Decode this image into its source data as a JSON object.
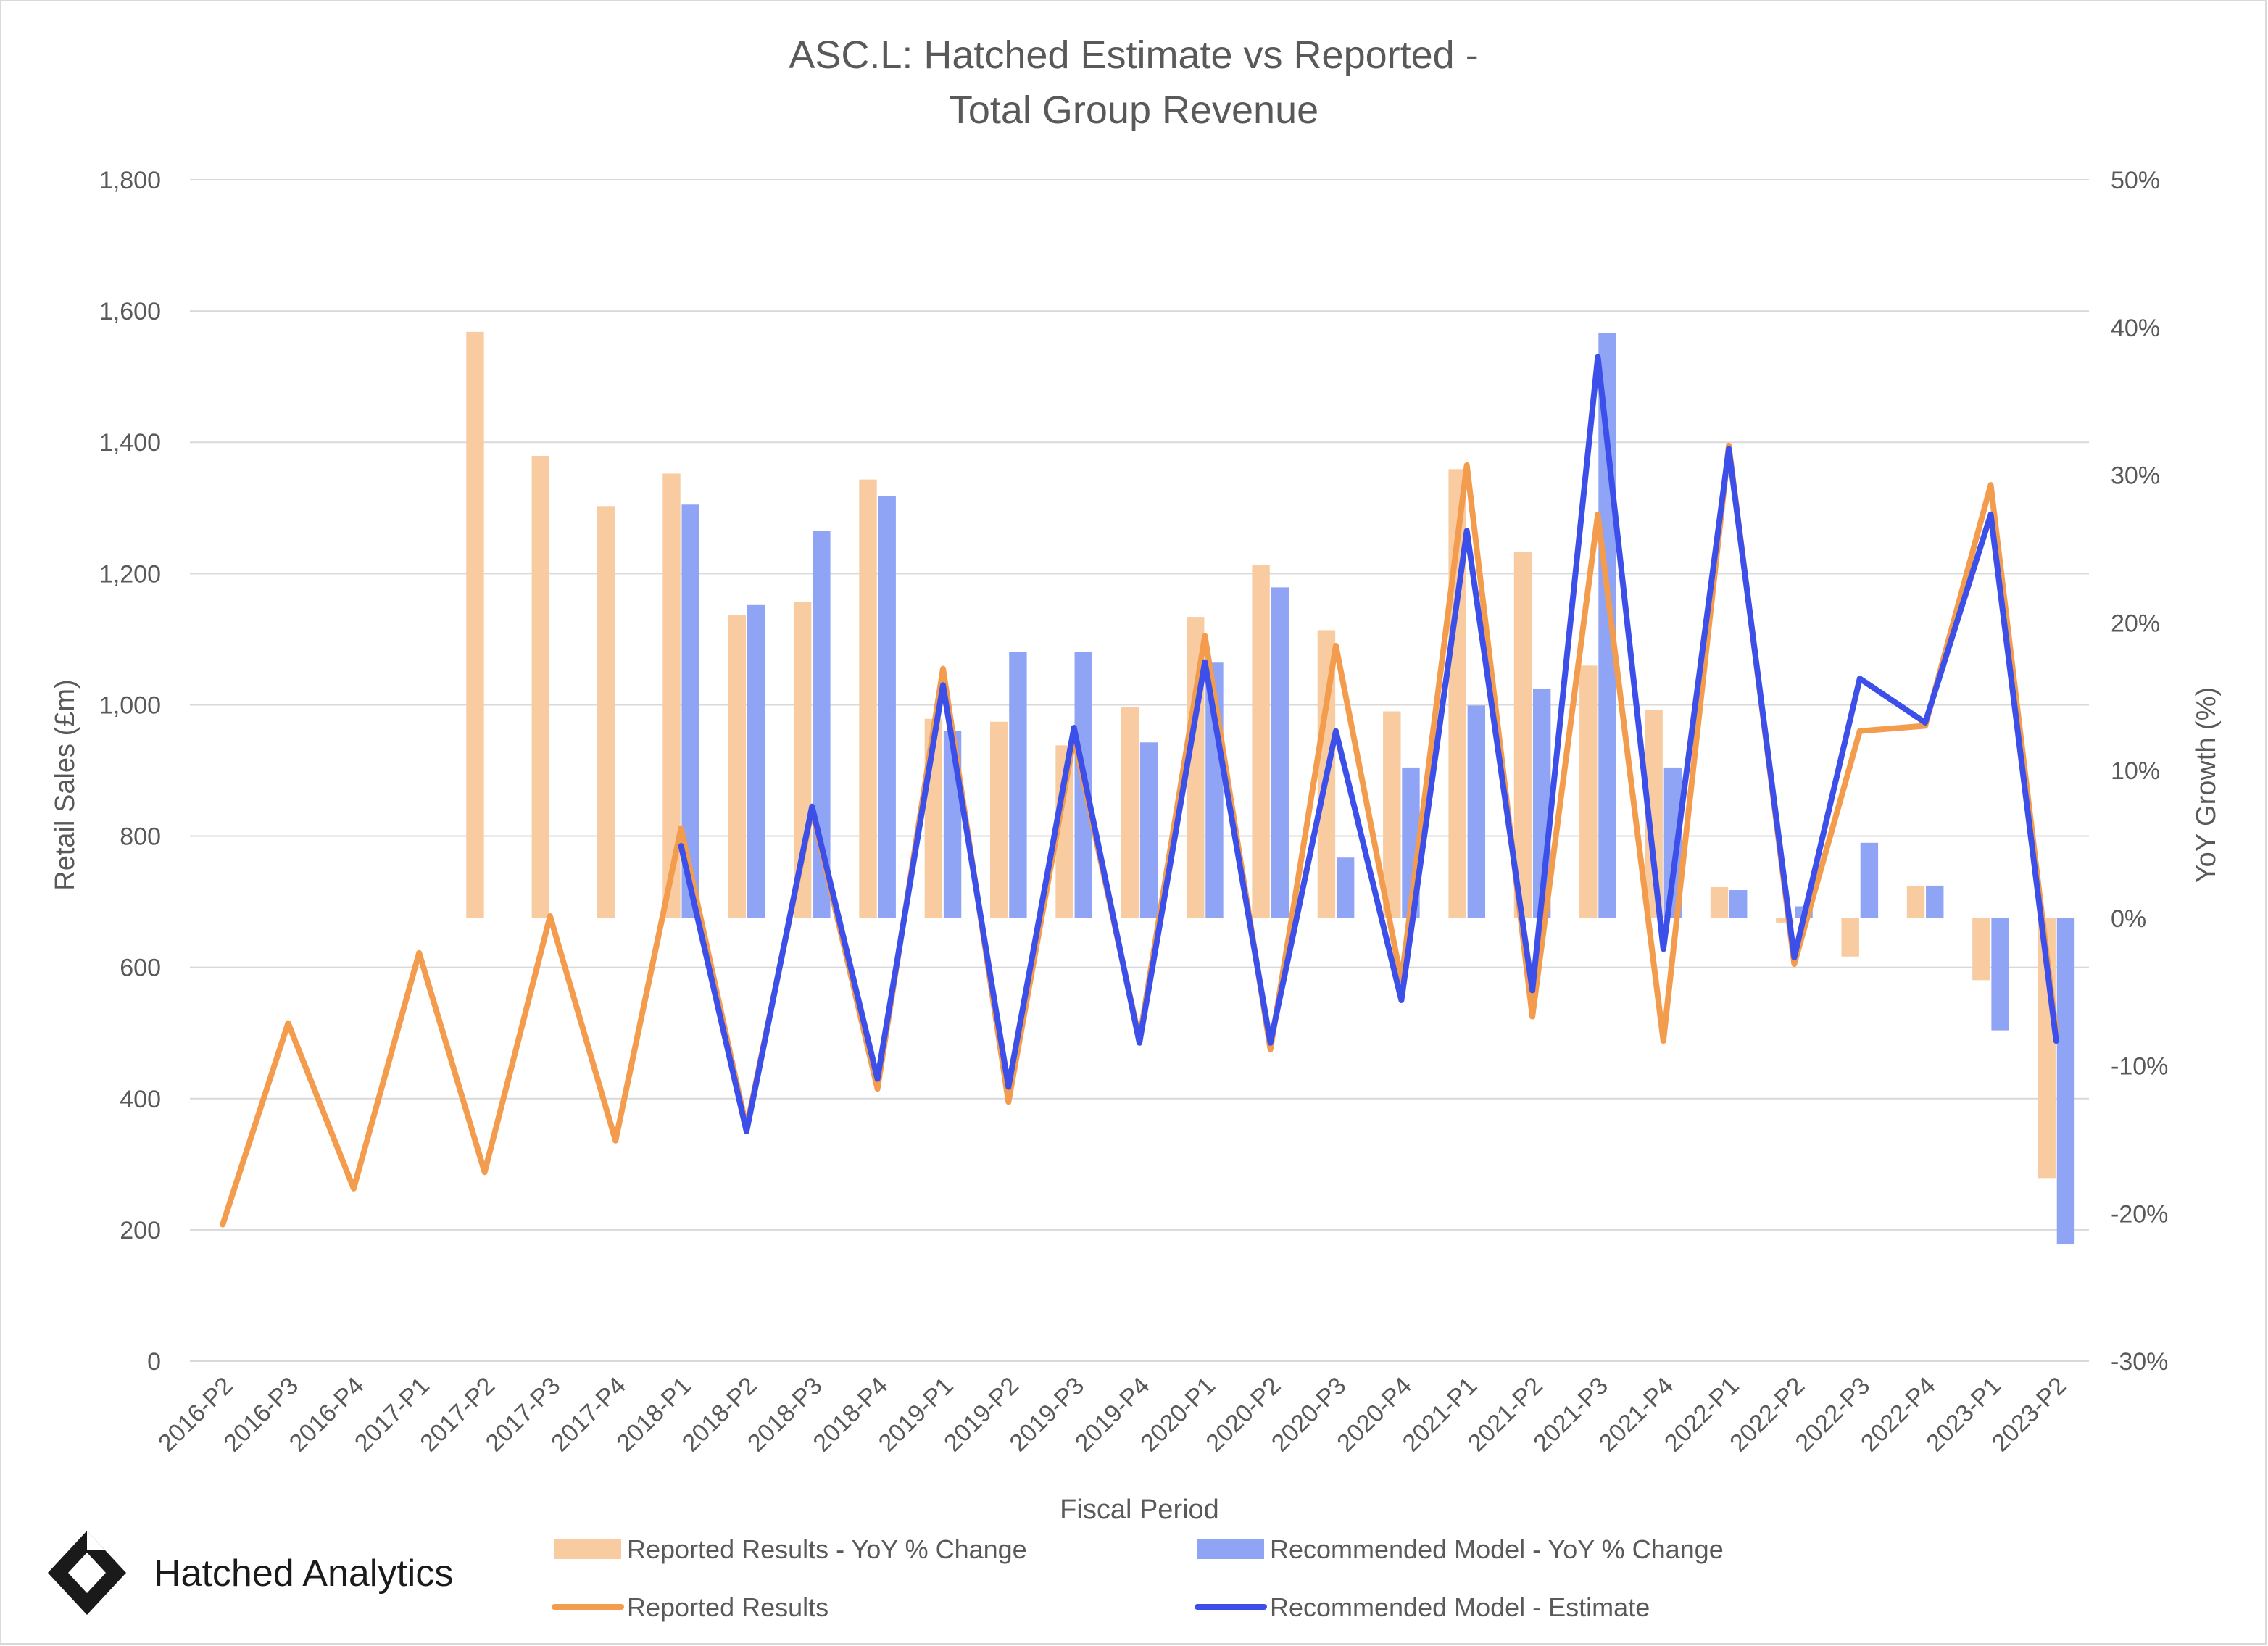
{
  "chart_data": {
    "type": "bar",
    "title": "ASC.L: Hatched Estimate vs Reported -",
    "subtitle": "Total Group Revenue",
    "xlabel": "Fiscal Period",
    "ylabel": "Retail Sales (£m)",
    "y2label": "YoY Growth (%)",
    "ylim": [
      0,
      1800
    ],
    "y2lim": [
      -30,
      50
    ],
    "yticks": [
      "0",
      "200",
      "400",
      "600",
      "800",
      "1,000",
      "1,200",
      "1,400",
      "1,600",
      "1,800"
    ],
    "y2ticks": [
      "-30%",
      "-20%",
      "-10%",
      "0%",
      "10%",
      "20%",
      "30%",
      "40%",
      "50%"
    ],
    "grid": true,
    "legend_position": "bottom",
    "categories": [
      "2016-P2",
      "2016-P3",
      "2016-P4",
      "2017-P1",
      "2017-P2",
      "2017-P3",
      "2017-P4",
      "2018-P1",
      "2018-P2",
      "2018-P3",
      "2018-P4",
      "2019-P1",
      "2019-P2",
      "2019-P3",
      "2019-P4",
      "2020-P1",
      "2020-P2",
      "2020-P3",
      "2020-P4",
      "2021-P1",
      "2021-P2",
      "2021-P3",
      "2021-P4",
      "2022-P1",
      "2022-P2",
      "2022-P3",
      "2022-P4",
      "2023-P1",
      "2023-P2"
    ],
    "series": [
      {
        "name": "Reported Results - YoY % Change",
        "kind": "bar",
        "axis": "right",
        "color": "#f8cba0",
        "values": [
          null,
          null,
          null,
          null,
          39.7,
          31.3,
          27.9,
          30.1,
          20.5,
          21.4,
          29.7,
          13.5,
          13.3,
          11.7,
          14.3,
          20.4,
          23.9,
          19.5,
          14.0,
          30.4,
          24.8,
          17.1,
          14.1,
          2.1,
          -0.3,
          -2.6,
          2.2,
          -4.2,
          -17.6
        ]
      },
      {
        "name": "Recommended Model - YoY % Change",
        "kind": "bar",
        "axis": "right",
        "color": "#8fa4f5",
        "values": [
          null,
          null,
          null,
          null,
          null,
          null,
          null,
          28.0,
          21.2,
          26.2,
          28.6,
          12.7,
          18.0,
          18.0,
          11.9,
          17.3,
          22.4,
          4.1,
          10.2,
          14.4,
          15.5,
          39.6,
          10.2,
          1.9,
          0.8,
          5.1,
          2.2,
          -7.6,
          -22.1
        ]
      },
      {
        "name": "Reported Results",
        "kind": "line",
        "axis": "left",
        "color": "#f39c4d",
        "values": [
          208,
          515,
          263,
          622,
          288,
          678,
          336,
          812,
          355,
          840,
          415,
          1055,
          395,
          950,
          490,
          1105,
          475,
          1090,
          580,
          1365,
          525,
          1290,
          488,
          1395,
          605,
          960,
          968,
          1335,
          498
        ]
      },
      {
        "name": "Recommended Model - Estimate",
        "kind": "line",
        "axis": "left",
        "color": "#3c4fe8",
        "values": [
          null,
          null,
          null,
          null,
          null,
          null,
          null,
          785,
          350,
          845,
          430,
          1030,
          418,
          965,
          485,
          1065,
          485,
          960,
          550,
          1265,
          565,
          1530,
          628,
          1390,
          615,
          1040,
          973,
          1290,
          488
        ]
      }
    ],
    "brand": {
      "name": "Hatched Analytics",
      "logo_icon": "hatched-diamond-logo"
    }
  }
}
